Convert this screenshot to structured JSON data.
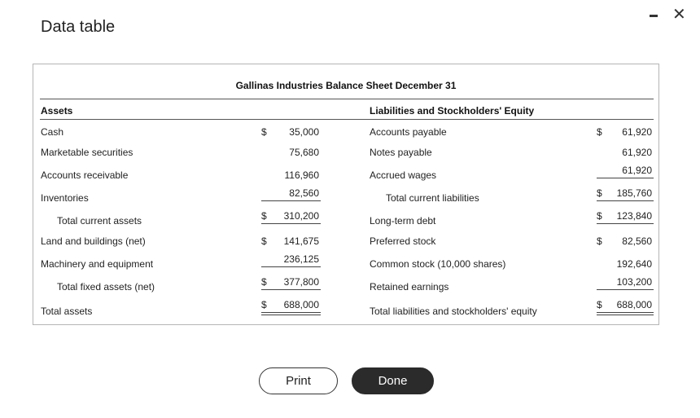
{
  "window": {
    "title": "Data table",
    "minimize_icon": "minimize-icon",
    "close_icon": "close-icon",
    "close_glyph": "✕"
  },
  "sheet": {
    "title": "Gallinas Industries Balance Sheet December 31",
    "assets_header": "Assets",
    "liabilities_header": "Liabilities and Stockholders' Equity",
    "currency": "$",
    "assets": [
      {
        "label": "Cash",
        "value": "35,000"
      },
      {
        "label": "Marketable securities",
        "value": "75,680"
      },
      {
        "label": "Accounts receivable",
        "value": "116,960"
      },
      {
        "label": "Inventories",
        "value": "82,560"
      },
      {
        "label": "Total current assets",
        "value": "310,200"
      },
      {
        "label": "Land and buildings (net)",
        "value": "141,675"
      },
      {
        "label": "Machinery and equipment",
        "value": "236,125"
      },
      {
        "label": "Total fixed assets (net)",
        "value": "377,800"
      },
      {
        "label": "Total assets",
        "value": "688,000"
      }
    ],
    "liabilities": [
      {
        "label": "Accounts payable",
        "value": "61,920"
      },
      {
        "label": "Notes payable",
        "value": "61,920"
      },
      {
        "label": "Accrued wages",
        "value": "61,920"
      },
      {
        "label": "Total current liabilities",
        "value": "185,760"
      },
      {
        "label": "Long-term debt",
        "value": "123,840"
      },
      {
        "label": "Preferred stock",
        "value": "82,560"
      },
      {
        "label": "Common stock (10,000 shares)",
        "value": "192,640"
      },
      {
        "label": "Retained earnings",
        "value": "103,200"
      },
      {
        "label": "Total liabilities and stockholders' equity",
        "value": "688,000"
      }
    ]
  },
  "buttons": {
    "print": "Print",
    "done": "Done"
  }
}
